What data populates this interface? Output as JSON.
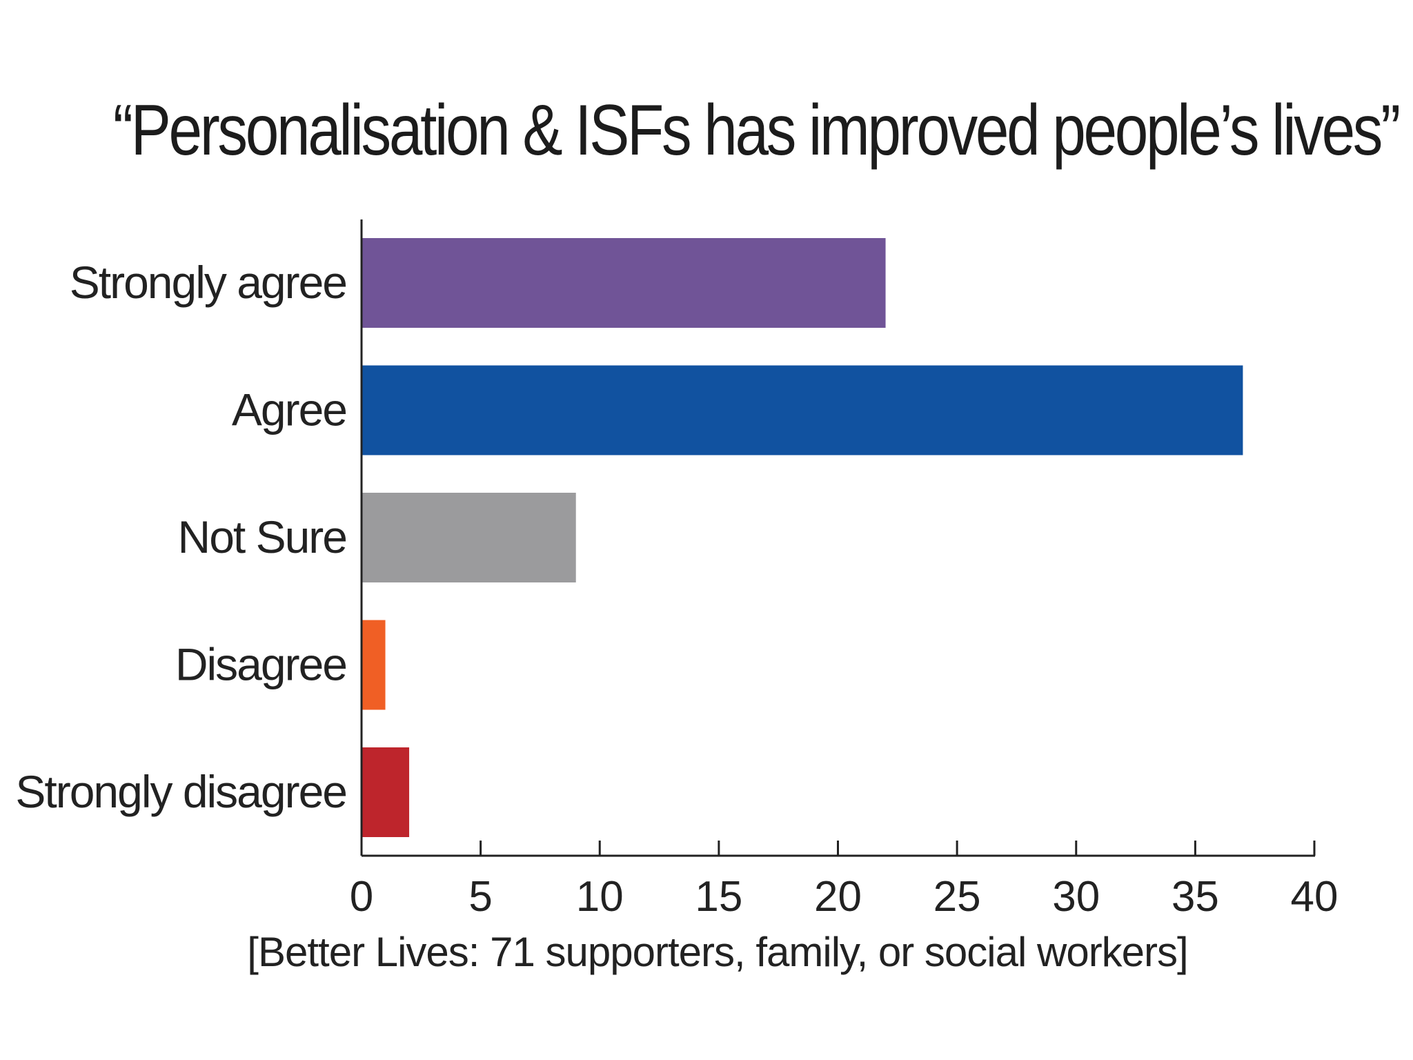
{
  "chart_data": {
    "type": "bar",
    "orientation": "horizontal",
    "title": "“Personalisation & ISFs has improved people’s lives”",
    "xlabel": "[Better Lives: 71 supporters, family, or social workers]",
    "ylabel": "",
    "categories": [
      "Strongly agree",
      "Agree",
      "Not Sure",
      "Disagree",
      "Strongly disagree"
    ],
    "values": [
      22,
      37,
      9,
      1,
      2
    ],
    "colors": [
      "#705497",
      "#1152a0",
      "#9b9b9d",
      "#f05f25",
      "#be252c"
    ],
    "xlim": [
      0,
      40
    ],
    "xticks": [
      0,
      5,
      10,
      15,
      20,
      25,
      30,
      35,
      40
    ],
    "grid": false,
    "legend": "none"
  }
}
